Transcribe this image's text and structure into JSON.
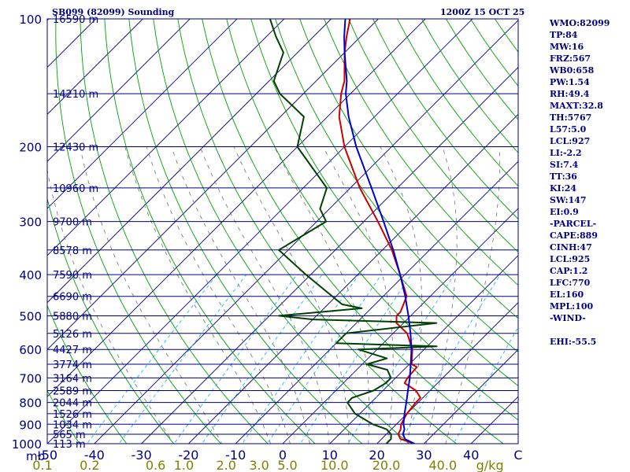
{
  "header": {
    "station": "SB099 (82099) Sounding",
    "time": "1200Z 15 OCT 25"
  },
  "indices": [
    "WMO:82099",
    "TP:84",
    "MW:16",
    "FRZ:567",
    "WB0:658",
    "PW:1.54",
    "RH:49.4",
    "MAXT:32.8",
    "TH:5767",
    "L57:5.0",
    "LCL:927",
    "LI:-2.2",
    "SI:7.4",
    "TT:36",
    "KI:24",
    "SW:147",
    "EI:0.9",
    "-PARCEL-",
    "CAPE:889",
    "CINH:47",
    "LCL:925",
    "CAP:1.2",
    "LFC:770",
    "EL:160",
    "MPL:100",
    "-WIND-",
    "",
    "EHI:-55.5"
  ],
  "colors": {
    "isobar": "#000080",
    "isotherm": "#000080",
    "dry_adiabat": "#00a000",
    "moist_adiabat": "#707070",
    "mixing_ratio": "#00aaff",
    "temperature": "#cc0000",
    "dewpoint": "#004000",
    "parcel": "#0000cc",
    "axis_text": "#000080",
    "mixing_text": "#808000"
  },
  "chart_data": {
    "type": "line",
    "title": "SB099 (82099) Sounding",
    "xlabel": "",
    "ylabel": "mb",
    "y_scale": "log",
    "ylim": [
      1000,
      100
    ],
    "xlim": [
      -50,
      50
    ],
    "pressure_ticks": [
      "100",
      "200",
      "300",
      "400",
      "500",
      "600",
      "700",
      "800",
      "900",
      "1000"
    ],
    "pressure_tick_values": [
      100,
      200,
      300,
      400,
      500,
      600,
      700,
      800,
      900,
      1000
    ],
    "temperature_ticks": [
      "-50",
      "-40",
      "-30",
      "-20",
      "-10",
      "0",
      "10",
      "20",
      "30",
      "40",
      "C"
    ],
    "temperature_tick_values": [
      -50,
      -40,
      -30,
      -20,
      -10,
      0,
      10,
      20,
      30,
      40
    ],
    "height_labels": [
      {
        "p": 100,
        "label": "16590 m"
      },
      {
        "p": 150,
        "label": "14210 m"
      },
      {
        "p": 200,
        "label": "12430 m"
      },
      {
        "p": 250,
        "label": "10960 m"
      },
      {
        "p": 300,
        "label": "9700 m"
      },
      {
        "p": 350,
        "label": "8578 m"
      },
      {
        "p": 400,
        "label": "7590 m"
      },
      {
        "p": 450,
        "label": "6690 m"
      },
      {
        "p": 500,
        "label": "5880 m"
      },
      {
        "p": 550,
        "label": "5126 m"
      },
      {
        "p": 600,
        "label": "4427 m"
      },
      {
        "p": 650,
        "label": "3774 m"
      },
      {
        "p": 700,
        "label": "3164 m"
      },
      {
        "p": 750,
        "label": "2589 m"
      },
      {
        "p": 800,
        "label": "2044 m"
      },
      {
        "p": 850,
        "label": "1526 m"
      },
      {
        "p": 900,
        "label": "1034 m"
      },
      {
        "p": 950,
        "label": "565 m"
      },
      {
        "p": 1000,
        "label": "113 m"
      }
    ],
    "mixing_ratio_ticks": [
      {
        "label": "0.1",
        "temp": -51
      },
      {
        "label": "0.2",
        "temp": -41
      },
      {
        "label": "0.6",
        "temp": -27
      },
      {
        "label": "1.0",
        "temp": -21
      },
      {
        "label": "2.0",
        "temp": -12
      },
      {
        "label": "3.0",
        "temp": -5
      },
      {
        "label": "5.0",
        "temp": 1
      },
      {
        "label": "10.0",
        "temp": 11
      },
      {
        "label": "20.0",
        "temp": 22
      },
      {
        "label": "40.0",
        "temp": 34
      },
      {
        "label": "g/kg",
        "temp": 44
      }
    ],
    "series": [
      {
        "name": "",
        "role": "temperature",
        "points": [
          {
            "p": 1000,
            "t": 28.0
          },
          {
            "p": 975,
            "t": 24.0
          },
          {
            "p": 950,
            "t": 22.5
          },
          {
            "p": 925,
            "t": 22.0
          },
          {
            "p": 900,
            "t": 21.0
          },
          {
            "p": 850,
            "t": 20.0
          },
          {
            "p": 800,
            "t": 19.5
          },
          {
            "p": 780,
            "t": 19.5
          },
          {
            "p": 750,
            "t": 17.0
          },
          {
            "p": 720,
            "t": 13.0
          },
          {
            "p": 700,
            "t": 12.5
          },
          {
            "p": 660,
            "t": 12.2
          },
          {
            "p": 650,
            "t": 10.5
          },
          {
            "p": 600,
            "t": 7.5
          },
          {
            "p": 550,
            "t": 3.0
          },
          {
            "p": 520,
            "t": -1.5
          },
          {
            "p": 500,
            "t": -3.0
          },
          {
            "p": 490,
            "t": -3.0
          },
          {
            "p": 450,
            "t": -5.0
          },
          {
            "p": 400,
            "t": -11.0
          },
          {
            "p": 350,
            "t": -18.0
          },
          {
            "p": 300,
            "t": -27.0
          },
          {
            "p": 250,
            "t": -38.0
          },
          {
            "p": 200,
            "t": -50.0
          },
          {
            "p": 170,
            "t": -57.5
          },
          {
            "p": 150,
            "t": -62.0
          },
          {
            "p": 140,
            "t": -64.0
          },
          {
            "p": 120,
            "t": -70.0
          },
          {
            "p": 110,
            "t": -73.0
          },
          {
            "p": 100,
            "t": -76.0
          }
        ]
      },
      {
        "name": "",
        "role": "dewpoint",
        "points": [
          {
            "p": 1000,
            "t": 22.0
          },
          {
            "p": 975,
            "t": 22.0
          },
          {
            "p": 950,
            "t": 21.0
          },
          {
            "p": 925,
            "t": 19.0
          },
          {
            "p": 900,
            "t": 15.0
          },
          {
            "p": 850,
            "t": 9.0
          },
          {
            "p": 800,
            "t": 5.0
          },
          {
            "p": 780,
            "t": 5.0
          },
          {
            "p": 750,
            "t": 8.0
          },
          {
            "p": 720,
            "t": 9.0
          },
          {
            "p": 700,
            "t": 9.0
          },
          {
            "p": 670,
            "t": 6.5
          },
          {
            "p": 650,
            "t": 1.0
          },
          {
            "p": 630,
            "t": 4.0
          },
          {
            "p": 600,
            "t": -4.0
          },
          {
            "p": 590,
            "t": 12.0
          },
          {
            "p": 580,
            "t": -10.0
          },
          {
            "p": 550,
            "t": -10.0
          },
          {
            "p": 520,
            "t": 7.0
          },
          {
            "p": 510,
            "t": -20.0
          },
          {
            "p": 500,
            "t": -28.0
          },
          {
            "p": 480,
            "t": -12.0
          },
          {
            "p": 470,
            "t": -17.0
          },
          {
            "p": 400,
            "t": -31.0
          },
          {
            "p": 350,
            "t": -42.0
          },
          {
            "p": 300,
            "t": -38.0
          },
          {
            "p": 280,
            "t": -42.0
          },
          {
            "p": 250,
            "t": -45.0
          },
          {
            "p": 200,
            "t": -60.0
          },
          {
            "p": 170,
            "t": -65.0
          },
          {
            "p": 150,
            "t": -75.0
          },
          {
            "p": 140,
            "t": -79.0
          },
          {
            "p": 120,
            "t": -83.0
          },
          {
            "p": 110,
            "t": -88.0
          },
          {
            "p": 100,
            "t": -93.0
          }
        ]
      },
      {
        "name": "",
        "role": "parcel",
        "points": [
          {
            "p": 1000,
            "t": 28.0
          },
          {
            "p": 975,
            "t": 25.0
          },
          {
            "p": 950,
            "t": 23.5
          },
          {
            "p": 925,
            "t": 22.8
          },
          {
            "p": 900,
            "t": 21.5
          },
          {
            "p": 850,
            "t": 19.5
          },
          {
            "p": 800,
            "t": 17.5
          },
          {
            "p": 750,
            "t": 15.3
          },
          {
            "p": 700,
            "t": 13.0
          },
          {
            "p": 650,
            "t": 10.3
          },
          {
            "p": 600,
            "t": 7.3
          },
          {
            "p": 550,
            "t": 3.7
          },
          {
            "p": 500,
            "t": -0.5
          },
          {
            "p": 450,
            "t": -5.3
          },
          {
            "p": 400,
            "t": -11.0
          },
          {
            "p": 350,
            "t": -17.7
          },
          {
            "p": 300,
            "t": -25.8
          },
          {
            "p": 250,
            "t": -35.5
          },
          {
            "p": 200,
            "t": -47.5
          },
          {
            "p": 170,
            "t": -55.5
          },
          {
            "p": 150,
            "t": -61.0
          },
          {
            "p": 140,
            "t": -63.5
          },
          {
            "p": 120,
            "t": -70.0
          },
          {
            "p": 110,
            "t": -73.5
          },
          {
            "p": 100,
            "t": -77.0
          }
        ]
      }
    ]
  }
}
